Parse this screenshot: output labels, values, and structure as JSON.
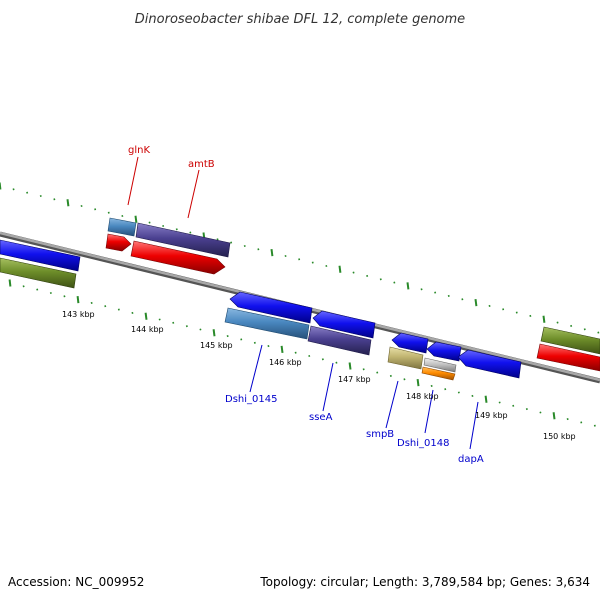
{
  "title": "Dinoroseobacter shibae DFL 12, complete genome",
  "footer": {
    "accession": "Accession: NC_009952",
    "summary": "Topology: circular; Length: 3,789,584 bp; Genes: 3,634"
  },
  "colors": {
    "backbone": "#8a8a8a",
    "ticks": "#2a8a2a",
    "red_label": "#cc0000",
    "blue_label": "#0000cc"
  },
  "kbp_labels": [
    {
      "text": "143 kbp"
    },
    {
      "text": "144 kbp"
    },
    {
      "text": "145 kbp"
    },
    {
      "text": "146 kbp"
    },
    {
      "text": "147 kbp"
    },
    {
      "text": "148 kbp"
    },
    {
      "text": "149 kbp"
    },
    {
      "text": "150 kbp"
    }
  ],
  "gene_labels": [
    {
      "text": "glnK",
      "style": "red"
    },
    {
      "text": "amtB",
      "style": "red"
    },
    {
      "text": "Dshi_0145",
      "style": "blue"
    },
    {
      "text": "sseA",
      "style": "blue"
    },
    {
      "text": "smpB",
      "style": "blue"
    },
    {
      "text": "Dshi_0148",
      "style": "blue"
    },
    {
      "text": "dapA",
      "style": "blue"
    }
  ]
}
